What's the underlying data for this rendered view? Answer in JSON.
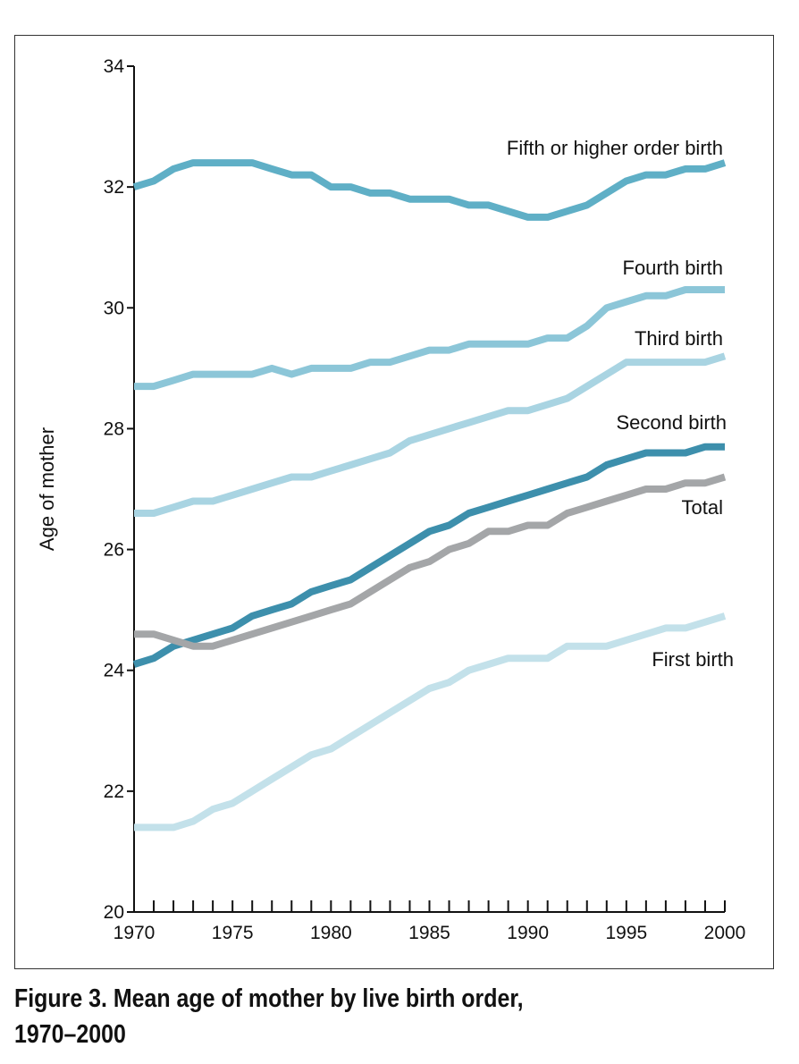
{
  "caption": {
    "line1": "Figure 3. Mean age of mother by live birth order,",
    "line2": "1970–2000"
  },
  "chart_data": {
    "type": "line",
    "ylabel": "Age of mother",
    "xlabel": "",
    "xlim": [
      1970,
      2000
    ],
    "ylim": [
      20,
      34
    ],
    "x_ticks": [
      1970,
      1975,
      1980,
      1985,
      1990,
      1995,
      2000
    ],
    "y_ticks": [
      20,
      22,
      24,
      26,
      28,
      30,
      32,
      34
    ],
    "grid": false,
    "x": [
      1970,
      1971,
      1972,
      1973,
      1974,
      1975,
      1976,
      1977,
      1978,
      1979,
      1980,
      1981,
      1982,
      1983,
      1984,
      1985,
      1986,
      1987,
      1988,
      1989,
      1990,
      1991,
      1992,
      1993,
      1994,
      1995,
      1996,
      1997,
      1998,
      1999,
      2000
    ],
    "series": [
      {
        "name": "Fifth or higher order birth",
        "color": "#5fafc6",
        "values": [
          32.0,
          32.1,
          32.3,
          32.4,
          32.4,
          32.4,
          32.4,
          32.3,
          32.2,
          32.2,
          32.0,
          32.0,
          31.9,
          31.9,
          31.8,
          31.8,
          31.8,
          31.7,
          31.7,
          31.6,
          31.5,
          31.5,
          31.6,
          31.7,
          31.9,
          32.1,
          32.2,
          32.2,
          32.3,
          32.3,
          32.4
        ]
      },
      {
        "name": "Fourth birth",
        "color": "#8cc6d8",
        "values": [
          28.7,
          28.7,
          28.8,
          28.9,
          28.9,
          28.9,
          28.9,
          29.0,
          28.9,
          29.0,
          29.0,
          29.0,
          29.1,
          29.1,
          29.2,
          29.3,
          29.3,
          29.4,
          29.4,
          29.4,
          29.4,
          29.5,
          29.5,
          29.7,
          30.0,
          30.1,
          30.2,
          30.2,
          30.3,
          30.3,
          30.3
        ]
      },
      {
        "name": "Third birth",
        "color": "#a9d4e2",
        "values": [
          26.6,
          26.6,
          26.7,
          26.8,
          26.8,
          26.9,
          27.0,
          27.1,
          27.2,
          27.2,
          27.3,
          27.4,
          27.5,
          27.6,
          27.8,
          27.9,
          28.0,
          28.1,
          28.2,
          28.3,
          28.3,
          28.4,
          28.5,
          28.7,
          28.9,
          29.1,
          29.1,
          29.1,
          29.1,
          29.1,
          29.2
        ]
      },
      {
        "name": "Second birth",
        "color": "#3d8fac",
        "values": [
          24.1,
          24.2,
          24.4,
          24.5,
          24.6,
          24.7,
          24.9,
          25.0,
          25.1,
          25.3,
          25.4,
          25.5,
          25.7,
          25.9,
          26.1,
          26.3,
          26.4,
          26.6,
          26.7,
          26.8,
          26.9,
          27.0,
          27.1,
          27.2,
          27.4,
          27.5,
          27.6,
          27.6,
          27.6,
          27.7,
          27.7
        ]
      },
      {
        "name": "Total",
        "color": "#a4a6a8",
        "values": [
          24.6,
          24.6,
          24.5,
          24.4,
          24.4,
          24.5,
          24.6,
          24.7,
          24.8,
          24.9,
          25.0,
          25.1,
          25.3,
          25.5,
          25.7,
          25.8,
          26.0,
          26.1,
          26.3,
          26.3,
          26.4,
          26.4,
          26.6,
          26.7,
          26.8,
          26.9,
          27.0,
          27.0,
          27.1,
          27.1,
          27.2
        ]
      },
      {
        "name": "First birth",
        "color": "#c3e1ea",
        "values": [
          21.4,
          21.4,
          21.4,
          21.5,
          21.7,
          21.8,
          22.0,
          22.2,
          22.4,
          22.6,
          22.7,
          22.9,
          23.1,
          23.3,
          23.5,
          23.7,
          23.8,
          24.0,
          24.1,
          24.2,
          24.2,
          24.2,
          24.4,
          24.4,
          24.4,
          24.5,
          24.6,
          24.7,
          24.7,
          24.8,
          24.9
        ]
      }
    ]
  }
}
